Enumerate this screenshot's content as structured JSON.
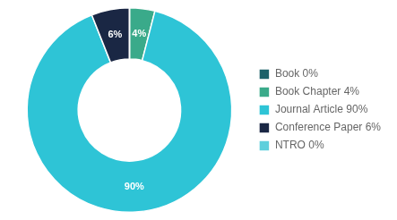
{
  "chart_data": {
    "type": "doughnut",
    "categories": [
      "Book 0%",
      "Book Chapter 4%",
      "Journal Article 90%",
      "Conference Paper 6%",
      "NTRO 0%"
    ],
    "values": [
      0.001,
      4,
      90,
      6,
      0.001
    ],
    "value_labels": [
      null,
      "4%",
      "90%",
      "6%",
      null
    ],
    "data_labels": true,
    "colors": [
      "#1c6169",
      "#3aaa8a",
      "#2ec4d6",
      "#1a2744",
      "#5ecfdc"
    ],
    "legend": "right"
  }
}
